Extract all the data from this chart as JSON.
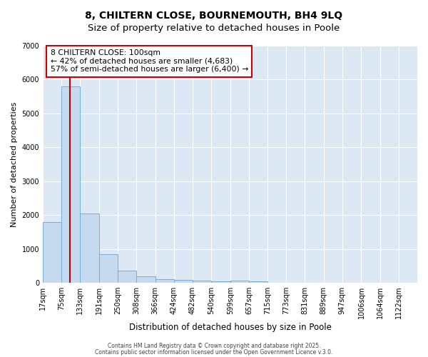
{
  "title_line1": "8, CHILTERN CLOSE, BOURNEMOUTH, BH4 9LQ",
  "title_line2": "Size of property relative to detached houses in Poole",
  "xlabel": "Distribution of detached houses by size in Poole",
  "ylabel": "Number of detached properties",
  "bar_edges": [
    17,
    75,
    133,
    191,
    250,
    308,
    366,
    424,
    482,
    540,
    599,
    657,
    715,
    773,
    831,
    889,
    947,
    1006,
    1064,
    1122,
    1180
  ],
  "bar_heights": [
    1800,
    5800,
    2050,
    840,
    360,
    200,
    110,
    85,
    65,
    50,
    65,
    35,
    10,
    5,
    3,
    2,
    1,
    1,
    0,
    0
  ],
  "bar_color": "#c5d9ef",
  "bar_edge_color": "#7aadd4",
  "bar_linewidth": 0.7,
  "red_line_x": 100,
  "red_line_color": "#cc0000",
  "annotation_title": "8 CHILTERN CLOSE: 100sqm",
  "annotation_line2": "← 42% of detached houses are smaller (4,683)",
  "annotation_line3": "57% of semi-detached houses are larger (6,400) →",
  "annotation_box_color": "#cc0000",
  "ylim": [
    0,
    7000
  ],
  "yticks": [
    0,
    1000,
    2000,
    3000,
    4000,
    5000,
    6000,
    7000
  ],
  "bg_color": "#dde8f5",
  "plot_bg_color": "#dde8f5",
  "grid_color": "#ffffff",
  "footer_line1": "Contains HM Land Registry data © Crown copyright and database right 2025.",
  "footer_line2": "Contains public sector information licensed under the Open Government Licence v.3.0."
}
